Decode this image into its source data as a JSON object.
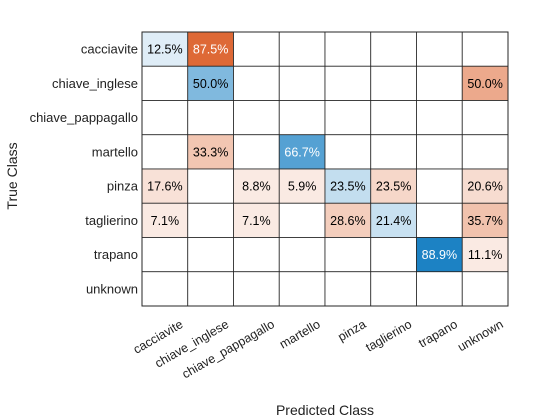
{
  "chart_data": {
    "type": "heatmap",
    "xlabel": "Predicted Class",
    "ylabel": "True Class",
    "rows": [
      "cacciavite",
      "chiave_inglese",
      "chiave_pappagallo",
      "martello",
      "pinza",
      "taglierino",
      "trapano",
      "unknown"
    ],
    "columns": [
      "cacciavite",
      "chiave_inglese",
      "chiave_pappagallo",
      "martello",
      "pinza",
      "taglierino",
      "trapano",
      "unknown"
    ],
    "values": [
      [
        12.5,
        87.5,
        null,
        null,
        null,
        null,
        null,
        null
      ],
      [
        null,
        50.0,
        null,
        null,
        null,
        null,
        null,
        50.0
      ],
      [
        null,
        null,
        null,
        null,
        null,
        null,
        null,
        null
      ],
      [
        null,
        33.3,
        null,
        66.7,
        null,
        null,
        null,
        null
      ],
      [
        17.6,
        null,
        8.8,
        5.9,
        23.5,
        23.5,
        null,
        20.6
      ],
      [
        7.1,
        null,
        7.1,
        null,
        28.6,
        21.4,
        null,
        35.7
      ],
      [
        null,
        null,
        null,
        null,
        null,
        null,
        88.9,
        11.1
      ],
      [
        null,
        null,
        null,
        null,
        null,
        null,
        null,
        null
      ]
    ],
    "value_suffix": "%",
    "colors": {
      "correct": "#0072bd",
      "incorrect": "#d95319",
      "empty": "#ffffff",
      "gridline": "#262626"
    }
  }
}
